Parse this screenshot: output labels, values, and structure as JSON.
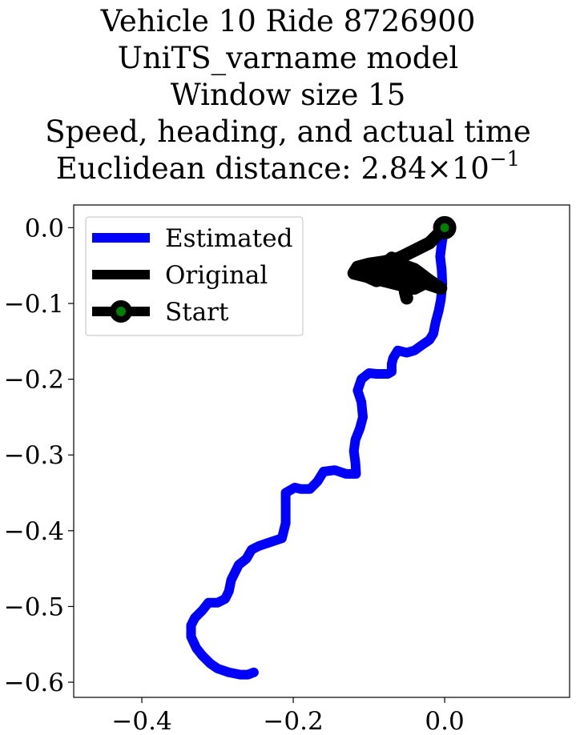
{
  "title_lines": [
    "Vehicle 10 Ride 8726900",
    "UniTS_varname model",
    "Window size 15",
    "Speed, heading, and actual time"
  ],
  "title_distance": {
    "prefix": "Euclidean distance: 2.84",
    "times": "×",
    "base": "10",
    "exponent": "−1"
  },
  "colors": {
    "estimated": "#0000ff",
    "original": "#000000",
    "start_marker_face": "#008000",
    "start_marker_edge": "#000000"
  },
  "chart_data": {
    "type": "line",
    "xlim": [
      -0.49,
      0.165
    ],
    "ylim": [
      -0.62,
      0.03
    ],
    "x_ticks": [
      -0.4,
      -0.2,
      0.0
    ],
    "x_tick_labels": [
      "−0.4",
      "−0.2",
      "0.0"
    ],
    "y_ticks": [
      0.0,
      -0.1,
      -0.2,
      -0.3,
      -0.4,
      -0.5,
      -0.6
    ],
    "y_tick_labels": [
      "0.0",
      "−0.1",
      "−0.2",
      "−0.3",
      "−0.4",
      "−0.5",
      "−0.6"
    ],
    "legend_position": "upper-left",
    "series": [
      {
        "name": "Estimated",
        "color": "#0000ff",
        "points": [
          [
            0.0,
            0.0
          ],
          [
            -0.002,
            -0.01
          ],
          [
            -0.004,
            -0.022
          ],
          [
            -0.006,
            -0.038
          ],
          [
            -0.004,
            -0.055
          ],
          [
            -0.003,
            -0.075
          ],
          [
            -0.005,
            -0.095
          ],
          [
            -0.008,
            -0.11
          ],
          [
            -0.012,
            -0.125
          ],
          [
            -0.015,
            -0.14
          ],
          [
            -0.02,
            -0.148
          ],
          [
            -0.03,
            -0.155
          ],
          [
            -0.04,
            -0.162
          ],
          [
            -0.05,
            -0.165
          ],
          [
            -0.062,
            -0.162
          ],
          [
            -0.068,
            -0.172
          ],
          [
            -0.07,
            -0.18
          ],
          [
            -0.07,
            -0.19
          ],
          [
            -0.075,
            -0.193
          ],
          [
            -0.09,
            -0.193
          ],
          [
            -0.1,
            -0.192
          ],
          [
            -0.11,
            -0.2
          ],
          [
            -0.115,
            -0.215
          ],
          [
            -0.11,
            -0.23
          ],
          [
            -0.108,
            -0.25
          ],
          [
            -0.112,
            -0.265
          ],
          [
            -0.118,
            -0.28
          ],
          [
            -0.12,
            -0.295
          ],
          [
            -0.118,
            -0.31
          ],
          [
            -0.117,
            -0.325
          ],
          [
            -0.13,
            -0.325
          ],
          [
            -0.145,
            -0.32
          ],
          [
            -0.16,
            -0.322
          ],
          [
            -0.168,
            -0.335
          ],
          [
            -0.178,
            -0.345
          ],
          [
            -0.19,
            -0.345
          ],
          [
            -0.198,
            -0.343
          ],
          [
            -0.21,
            -0.35
          ],
          [
            -0.21,
            -0.37
          ],
          [
            -0.21,
            -0.39
          ],
          [
            -0.215,
            -0.41
          ],
          [
            -0.23,
            -0.415
          ],
          [
            -0.245,
            -0.42
          ],
          [
            -0.255,
            -0.425
          ],
          [
            -0.262,
            -0.437
          ],
          [
            -0.272,
            -0.445
          ],
          [
            -0.282,
            -0.465
          ],
          [
            -0.285,
            -0.48
          ],
          [
            -0.29,
            -0.49
          ],
          [
            -0.3,
            -0.495
          ],
          [
            -0.312,
            -0.495
          ],
          [
            -0.32,
            -0.505
          ],
          [
            -0.33,
            -0.515
          ],
          [
            -0.335,
            -0.525
          ],
          [
            -0.335,
            -0.54
          ],
          [
            -0.328,
            -0.555
          ],
          [
            -0.32,
            -0.565
          ],
          [
            -0.31,
            -0.575
          ],
          [
            -0.3,
            -0.582
          ],
          [
            -0.285,
            -0.587
          ],
          [
            -0.27,
            -0.59
          ],
          [
            -0.26,
            -0.59
          ],
          [
            -0.252,
            -0.587
          ]
        ]
      },
      {
        "name": "Original",
        "color": "#000000",
        "points": [
          [
            0.0,
            0.0
          ],
          [
            -0.02,
            -0.02
          ],
          [
            -0.04,
            -0.03
          ],
          [
            -0.06,
            -0.04
          ],
          [
            -0.08,
            -0.045
          ],
          [
            -0.1,
            -0.048
          ],
          [
            -0.115,
            -0.052
          ],
          [
            -0.12,
            -0.06
          ],
          [
            -0.1,
            -0.065
          ],
          [
            -0.08,
            -0.07
          ],
          [
            -0.06,
            -0.075
          ],
          [
            -0.04,
            -0.08
          ],
          [
            -0.03,
            -0.075
          ],
          [
            -0.05,
            -0.068
          ],
          [
            -0.075,
            -0.06
          ],
          [
            -0.095,
            -0.058
          ],
          [
            -0.11,
            -0.055
          ],
          [
            -0.1,
            -0.05
          ],
          [
            -0.08,
            -0.045
          ],
          [
            -0.06,
            -0.048
          ],
          [
            -0.04,
            -0.055
          ],
          [
            -0.02,
            -0.07
          ],
          [
            -0.005,
            -0.08
          ],
          [
            -0.02,
            -0.075
          ],
          [
            -0.04,
            -0.068
          ],
          [
            -0.065,
            -0.062
          ],
          [
            -0.09,
            -0.06
          ],
          [
            -0.108,
            -0.062
          ],
          [
            -0.09,
            -0.07
          ],
          [
            -0.07,
            -0.062
          ],
          [
            -0.055,
            -0.06
          ],
          [
            -0.05,
            -0.075
          ],
          [
            -0.052,
            -0.085
          ],
          [
            -0.05,
            -0.093
          ],
          [
            -0.055,
            -0.07
          ],
          [
            -0.06,
            -0.05
          ],
          [
            -0.07,
            -0.04
          ],
          [
            -0.08,
            -0.05
          ],
          [
            -0.085,
            -0.065
          ],
          [
            -0.09,
            -0.07
          ]
        ]
      }
    ],
    "start_marker": {
      "name": "Start",
      "x": 0.0,
      "y": 0.0
    }
  }
}
